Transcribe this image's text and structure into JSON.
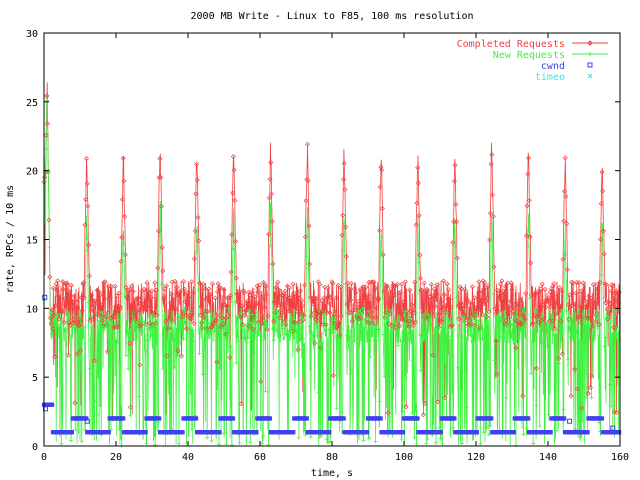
{
  "chart_data": {
    "type": "line",
    "title": "2000 MB Write - Linux to F85, 100 ms resolution",
    "xlabel": "time, s",
    "ylabel": "rate, RPCs / 10 ms",
    "xlim": [
      0,
      160
    ],
    "ylim": [
      0,
      30
    ],
    "xticks": [
      0,
      20,
      40,
      60,
      80,
      100,
      120,
      140,
      160
    ],
    "yticks": [
      0,
      5,
      10,
      15,
      20,
      25,
      30
    ],
    "grid": false,
    "legend_position": "top-right",
    "bursts": [
      0.5,
      11.5,
      21.7,
      31.9,
      42.1,
      52.3,
      62.6,
      72.8,
      83.0,
      93.3,
      103.5,
      113.8,
      124.0,
      134.2,
      144.4,
      154.7
    ],
    "peaks": [
      26.8,
      21,
      21,
      22.3,
      21.6,
      21.7,
      22,
      21.9,
      21.8,
      21.3,
      21.5,
      21.4,
      22.1,
      21.8,
      20.9,
      20.4
    ],
    "series": [
      {
        "name": "Completed Requests",
        "color": "#f04040",
        "marker": "diamond",
        "description_values": {
          "baseline_range": [
            8.5,
            12
          ],
          "typical": 10.5
        }
      },
      {
        "name": "New Requests",
        "color": "#40f040",
        "marker": "plus",
        "description_values": {
          "baseline_range": [
            0,
            10
          ],
          "typical": 8.5,
          "burst_peak": 18
        }
      },
      {
        "name": "cwnd",
        "color": "#4040f0",
        "marker": "square",
        "values": {
          "baseline": 1,
          "step": 2,
          "initial": 3
        }
      },
      {
        "name": "timeo",
        "color": "#40e0f0",
        "marker": "x",
        "values": []
      }
    ]
  }
}
